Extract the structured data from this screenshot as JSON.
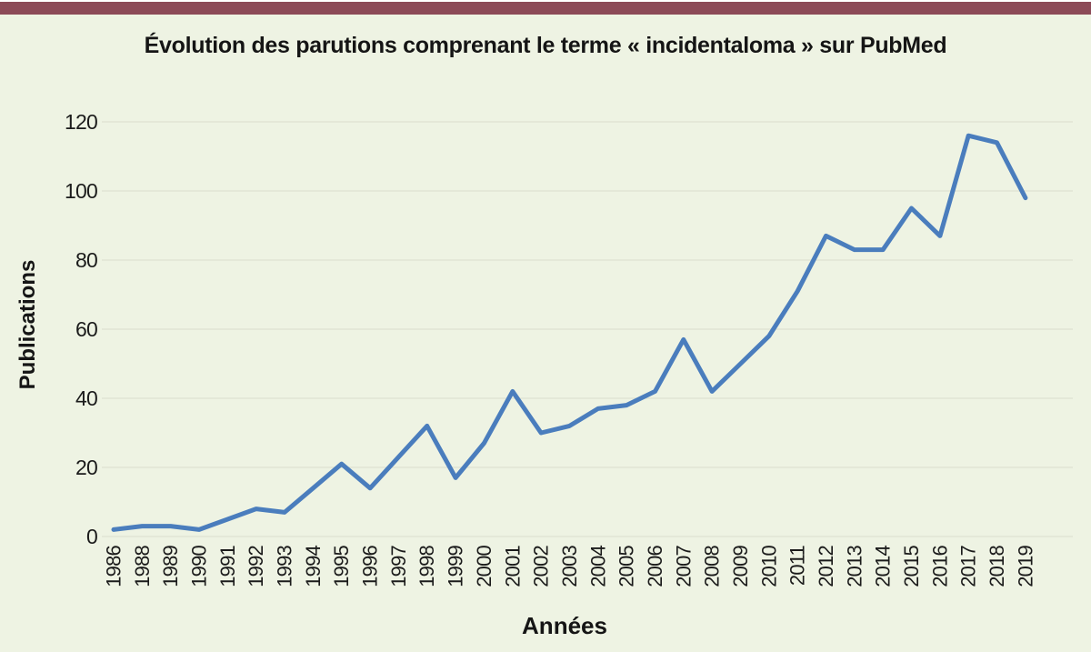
{
  "page": {
    "top_bar_color": "#8c4a57",
    "background_color": "#eef3e3",
    "gridline_color": "#dde2d2"
  },
  "chart_data": {
    "type": "line",
    "title": "Évolution des parutions comprenant le terme « incidentaloma » sur PubMed",
    "xlabel": "Années",
    "ylabel": "Publications",
    "categories": [
      "1986",
      "1988",
      "1989",
      "1990",
      "1991",
      "1992",
      "1993",
      "1994",
      "1995",
      "1996",
      "1997",
      "1998",
      "1999",
      "2000",
      "2001",
      "2002",
      "2003",
      "2004",
      "2005",
      "2006",
      "2007",
      "2008",
      "2009",
      "2010",
      "2011",
      "2012",
      "2013",
      "2014",
      "2015",
      "2016",
      "2017",
      "2018",
      "2019"
    ],
    "values": [
      2,
      3,
      3,
      2,
      5,
      8,
      7,
      14,
      21,
      14,
      23,
      32,
      17,
      27,
      42,
      30,
      32,
      37,
      38,
      42,
      57,
      42,
      50,
      58,
      71,
      87,
      83,
      83,
      95,
      87,
      116,
      114,
      98
    ],
    "ylim": [
      0,
      120
    ],
    "ytick_step": 20,
    "grid": true,
    "legend": "none",
    "line_color": "#4a7dbd"
  }
}
